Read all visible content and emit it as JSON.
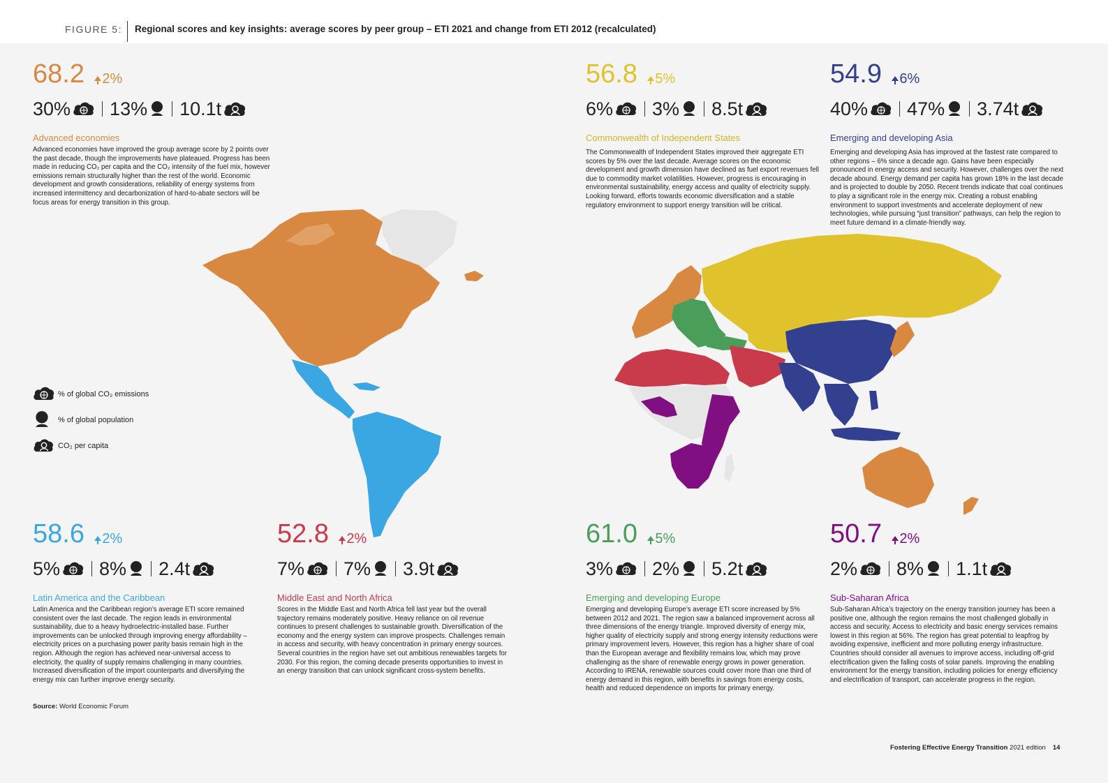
{
  "figure": {
    "label": "FIGURE 5:",
    "title": "Regional scores and key insights: average scores by peer group – ETI 2021 and change from ETI 2012 (recalculated)"
  },
  "icons": {
    "emissions": "cloud-globe-icon",
    "population": "person-icon",
    "per_capita": "cloud-person-icon"
  },
  "regions": {
    "advanced": {
      "score": "68.2",
      "change": "2%",
      "color": "#d98842",
      "emissions": "30%",
      "population": "13%",
      "per_capita": "10.1t",
      "name": "Advanced economies",
      "description": "Advanced economies have improved the group average score by 2 points over the past decade, though the improvements have plateaued. Progress has been made in reducing CO₂ per capita and the CO₂ intensity of the fuel mix, however emissions remain structurally higher than the rest of the world. Economic development and growth considerations, reliability of energy systems from increased intermittency and decarbonization of hard-to-abate sectors will be focus areas for energy transition in this group."
    },
    "cis": {
      "score": "56.8",
      "change": "5%",
      "color": "#e0c22c",
      "emissions": "6%",
      "population": "3%",
      "per_capita": "8.5t",
      "name": "Commonwealth of Independent States",
      "description": "The Commonwealth of Independent States improved their aggregate ETI scores by 5% over the last decade. Average scores on the economic development and growth dimension have declined as fuel export revenues fell due to commodity market volatilities. However, progress is encouraging in environmental sustainability, energy access and quality of electricity supply. Looking forward, efforts towards economic diversification and a stable regulatory environment to support energy transition will be critical."
    },
    "asia": {
      "score": "54.9",
      "change": "6%",
      "color": "#33408f",
      "emissions": "40%",
      "population": "47%",
      "per_capita": "3.74t",
      "name": "Emerging and developing Asia",
      "description": "Emerging and developing Asia has improved at the fastest rate compared to other regions – 6% since a decade ago. Gains have been especially pronounced in energy access and security. However, challenges over the next decade abound. Energy demand per capita has grown 18% in the last decade and is projected to double by 2050. Recent trends indicate that coal continues to play a significant role in the energy mix. Creating a robust enabling environment to support investments and accelerate deployment of new technologies, while pursuing “just transition” pathways, can help the region to meet future demand in a climate-friendly way."
    },
    "latam": {
      "score": "58.6",
      "change": "2%",
      "color": "#3aa7e3",
      "emissions": "5%",
      "population": "8%",
      "per_capita": "2.4t",
      "name": "Latin America and the Caribbean",
      "description": "Latin America and the Caribbean region’s average ETI score remained consistent over the last decade. The region leads in environmental sustainability, due to a heavy hydroelectric-installed base. Further improvements can be unlocked through improving energy affordability – electricity prices on a purchasing power parity basis remain high in the region. Although the region has achieved near-universal access to electricity, the quality of supply remains challenging in many countries. Increased diversification of the import counterparts and diversifying the energy mix can further improve energy security."
    },
    "mena": {
      "score": "52.8",
      "change": "2%",
      "color": "#c93a4a",
      "emissions": "7%",
      "population": "7%",
      "per_capita": "3.9t",
      "name": "Middle East and North Africa",
      "description": "Scores in the Middle East and North Africa fell last year but the overall trajectory remains moderately positive. Heavy reliance on oil revenue continues to present challenges to sustainable growth. Diversification of the economy and the energy system can improve prospects. Challenges remain in access and security, with heavy concentration in primary energy sources. Several countries in the region have set out ambitious renewables targets for 2030. For this region, the coming decade presents opportunities to invest in an energy transition that can unlock significant cross-system benefits."
    },
    "europe": {
      "score": "61.0",
      "change": "5%",
      "color": "#4b9e5a",
      "emissions": "3%",
      "population": "2%",
      "per_capita": "5.2t",
      "name": "Emerging and developing Europe",
      "description": "Emerging and developing Europe’s average ETI score increased by 5% between 2012 and 2021. The region saw a balanced improvement across all three dimensions of the energy triangle. Improved diversity of energy mix, higher quality of electricity supply and strong energy intensity reductions were primary improvement levers. However, this region has a higher share of coal than the European average and flexibility remains low, which may prove challenging as the share of renewable energy grows in power generation. According to IRENA, renewable sources could cover more than one third of energy demand in this region, with benefits in savings from energy costs, health and reduced dependence on imports for primary energy."
    },
    "ssa": {
      "score": "50.7",
      "change": "2%",
      "color": "#800f82",
      "emissions": "2%",
      "population": "8%",
      "per_capita": "1.1t",
      "name": "Sub-Saharan Africa",
      "description": "Sub-Saharan Africa’s trajectory on the energy transition journey has been a positive one, although the region remains the most challenged globally in access and security. Access to electricity and basic energy services remains lowest in this region at 56%. The region has great potential to leapfrog by avoiding expensive, inefficient and more polluting energy infrastructure. Countries should consider all avenues to improve access, including off-grid electrification given the falling costs of solar panels. Improving the enabling environment for the energy transition, including policies for energy efficiency and electrification of transport, can accelerate progress in the region."
    }
  },
  "legend": {
    "emissions": "% of global CO₂ emissions",
    "population": "% of global population",
    "per_capita": "CO₂ per capita"
  },
  "source": {
    "label": "Source:",
    "text": "World Economic Forum"
  },
  "footer": {
    "title": "Fostering Effective Energy Transition",
    "edition": "2021 edition",
    "page": "14"
  }
}
